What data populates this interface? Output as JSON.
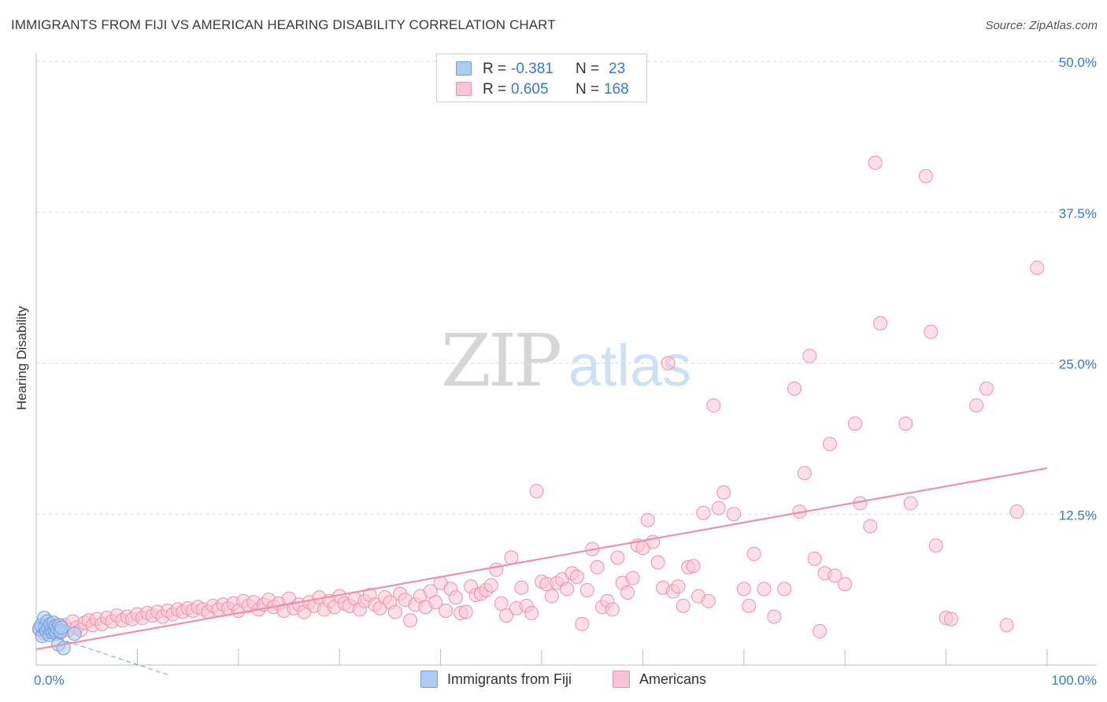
{
  "title": "IMMIGRANTS FROM FIJI VS AMERICAN HEARING DISABILITY CORRELATION CHART",
  "source": "Source: ZipAtlas.com",
  "watermark": {
    "zip": "ZIP",
    "atlas": "atlas"
  },
  "stats": [
    {
      "r_label": "R =",
      "r_value": "-0.381",
      "n_label": "N =",
      "n_value": "23",
      "fill": "#aecbf0",
      "stroke": "#6f9fe0"
    },
    {
      "r_label": "R =",
      "r_value": "0.605",
      "n_label": "N =",
      "n_value": "168",
      "fill": "#f9c4d3",
      "stroke": "#ee8fac"
    }
  ],
  "legend": [
    {
      "label": "Immigrants from Fiji",
      "fill": "#aecbf0",
      "stroke": "#6f9fe0"
    },
    {
      "label": "Americans",
      "fill": "#f9c4d3",
      "stroke": "#ee8fac"
    }
  ],
  "chart_data": {
    "type": "scatter",
    "title": "IMMIGRANTS FROM FIJI VS AMERICAN HEARING DISABILITY CORRELATION CHART",
    "xlabel": "",
    "ylabel": "Hearing Disability",
    "xlim": [
      0,
      100
    ],
    "ylim": [
      0,
      50
    ],
    "x_tick_labels": [
      {
        "x": 0,
        "label": "0.0%"
      },
      {
        "x": 100,
        "label": "100.0%"
      }
    ],
    "y_tick_labels": [
      {
        "y": 12.5,
        "label": "12.5%"
      },
      {
        "y": 25,
        "label": "25.0%"
      },
      {
        "y": 37.5,
        "label": "37.5%"
      },
      {
        "y": 50,
        "label": "50.0%"
      }
    ],
    "grid": "horizontal dashed",
    "series": [
      {
        "name": "Immigrants from Fiji",
        "color": "#6f9fe0",
        "fill": "#aecbf0",
        "trend": {
          "x": [
            0,
            13
          ],
          "y": [
            2.8,
            -0.8
          ],
          "style": "dashed"
        },
        "points": [
          [
            0.3,
            3.0
          ],
          [
            0.5,
            3.3
          ],
          [
            0.6,
            2.4
          ],
          [
            0.8,
            3.9
          ],
          [
            0.9,
            3.2
          ],
          [
            1.0,
            2.8
          ],
          [
            1.1,
            3.6
          ],
          [
            1.2,
            3.1
          ],
          [
            1.3,
            2.5
          ],
          [
            1.4,
            3.4
          ],
          [
            1.5,
            3.0
          ],
          [
            1.6,
            2.7
          ],
          [
            1.7,
            3.5
          ],
          [
            1.8,
            2.9
          ],
          [
            1.9,
            3.2
          ],
          [
            2.0,
            2.6
          ],
          [
            2.1,
            3.0
          ],
          [
            2.2,
            1.7
          ],
          [
            2.3,
            3.3
          ],
          [
            2.4,
            2.8
          ],
          [
            2.5,
            3.1
          ],
          [
            2.7,
            1.4
          ],
          [
            3.8,
            2.6
          ]
        ]
      },
      {
        "name": "Americans",
        "color": "#ee8fac",
        "fill": "#f9c4d3",
        "trend": {
          "x": [
            0,
            100
          ],
          "y": [
            1.3,
            16.3
          ],
          "style": "solid"
        },
        "points": [
          [
            0.4,
            2.9
          ],
          [
            0.8,
            2.6
          ],
          [
            1.2,
            3.2
          ],
          [
            1.6,
            2.8
          ],
          [
            2.0,
            3.0
          ],
          [
            2.4,
            2.7
          ],
          [
            2.8,
            3.3
          ],
          [
            3.2,
            2.9
          ],
          [
            3.6,
            3.6
          ],
          [
            4.0,
            3.1
          ],
          [
            4.4,
            2.9
          ],
          [
            4.8,
            3.5
          ],
          [
            5.2,
            3.7
          ],
          [
            5.6,
            3.3
          ],
          [
            6.0,
            3.8
          ],
          [
            6.5,
            3.4
          ],
          [
            7.0,
            3.9
          ],
          [
            7.5,
            3.6
          ],
          [
            8.0,
            4.1
          ],
          [
            8.5,
            3.7
          ],
          [
            9.0,
            4.0
          ],
          [
            9.5,
            3.8
          ],
          [
            10.0,
            4.2
          ],
          [
            10.5,
            3.9
          ],
          [
            11.0,
            4.3
          ],
          [
            11.5,
            4.1
          ],
          [
            12.0,
            4.4
          ],
          [
            12.5,
            4.0
          ],
          [
            13.0,
            4.5
          ],
          [
            13.5,
            4.2
          ],
          [
            14.0,
            4.6
          ],
          [
            14.5,
            4.4
          ],
          [
            15.0,
            4.7
          ],
          [
            15.5,
            4.5
          ],
          [
            16.0,
            4.8
          ],
          [
            16.5,
            4.6
          ],
          [
            17.0,
            4.4
          ],
          [
            17.5,
            4.9
          ],
          [
            18.0,
            4.6
          ],
          [
            18.5,
            5.0
          ],
          [
            19.0,
            4.7
          ],
          [
            19.5,
            5.1
          ],
          [
            20.0,
            4.5
          ],
          [
            20.5,
            5.3
          ],
          [
            21.0,
            4.9
          ],
          [
            21.5,
            5.2
          ],
          [
            22.0,
            4.6
          ],
          [
            22.5,
            5.0
          ],
          [
            23.0,
            5.4
          ],
          [
            23.5,
            4.8
          ],
          [
            24.0,
            5.1
          ],
          [
            24.5,
            4.5
          ],
          [
            25.0,
            5.5
          ],
          [
            25.5,
            4.7
          ],
          [
            26.0,
            5.0
          ],
          [
            26.5,
            4.4
          ],
          [
            27.0,
            5.2
          ],
          [
            27.5,
            4.9
          ],
          [
            28.0,
            5.6
          ],
          [
            28.5,
            4.6
          ],
          [
            29.0,
            5.3
          ],
          [
            29.5,
            4.8
          ],
          [
            30.0,
            5.7
          ],
          [
            30.5,
            5.1
          ],
          [
            31.0,
            4.9
          ],
          [
            31.5,
            5.5
          ],
          [
            32.0,
            4.6
          ],
          [
            32.5,
            5.3
          ],
          [
            33.0,
            5.8
          ],
          [
            33.5,
            5.0
          ],
          [
            34.0,
            4.7
          ],
          [
            34.5,
            5.6
          ],
          [
            35.0,
            5.2
          ],
          [
            35.5,
            4.4
          ],
          [
            36.0,
            5.9
          ],
          [
            36.5,
            5.4
          ],
          [
            37.0,
            3.7
          ],
          [
            37.5,
            5.0
          ],
          [
            38.0,
            5.7
          ],
          [
            38.5,
            4.8
          ],
          [
            39.0,
            6.1
          ],
          [
            39.5,
            5.2
          ],
          [
            40.0,
            6.8
          ],
          [
            40.5,
            4.5
          ],
          [
            41.0,
            6.3
          ],
          [
            41.5,
            5.6
          ],
          [
            42.0,
            4.3
          ],
          [
            42.5,
            4.4
          ],
          [
            43.0,
            6.5
          ],
          [
            43.5,
            5.8
          ],
          [
            44.0,
            5.9
          ],
          [
            44.5,
            6.2
          ],
          [
            45.0,
            6.6
          ],
          [
            45.5,
            7.9
          ],
          [
            46.0,
            5.1
          ],
          [
            46.5,
            4.1
          ],
          [
            47.0,
            8.9
          ],
          [
            47.5,
            4.7
          ],
          [
            48.0,
            6.4
          ],
          [
            48.5,
            4.9
          ],
          [
            49.0,
            4.3
          ],
          [
            49.5,
            14.4
          ],
          [
            50.0,
            6.9
          ],
          [
            50.5,
            6.7
          ],
          [
            51.0,
            5.7
          ],
          [
            51.5,
            6.8
          ],
          [
            52.0,
            7.1
          ],
          [
            52.5,
            6.3
          ],
          [
            53.0,
            7.6
          ],
          [
            53.5,
            7.3
          ],
          [
            54.0,
            3.4
          ],
          [
            54.5,
            6.2
          ],
          [
            55.0,
            9.6
          ],
          [
            55.5,
            8.1
          ],
          [
            56.0,
            4.8
          ],
          [
            56.5,
            5.3
          ],
          [
            57.0,
            4.6
          ],
          [
            57.5,
            8.9
          ],
          [
            58.0,
            6.8
          ],
          [
            58.5,
            6.0
          ],
          [
            59.0,
            7.2
          ],
          [
            59.5,
            9.9
          ],
          [
            60.0,
            9.7
          ],
          [
            60.5,
            12.0
          ],
          [
            61.0,
            10.2
          ],
          [
            61.5,
            8.5
          ],
          [
            62.0,
            6.4
          ],
          [
            62.5,
            25.0
          ],
          [
            63.0,
            6.1
          ],
          [
            63.5,
            6.5
          ],
          [
            64.0,
            4.9
          ],
          [
            64.5,
            8.1
          ],
          [
            65.0,
            8.2
          ],
          [
            65.5,
            5.7
          ],
          [
            66.0,
            12.6
          ],
          [
            66.5,
            5.3
          ],
          [
            67.0,
            21.5
          ],
          [
            67.5,
            13.0
          ],
          [
            68.0,
            14.3
          ],
          [
            69.0,
            12.5
          ],
          [
            70.0,
            6.3
          ],
          [
            70.5,
            4.9
          ],
          [
            71.0,
            9.2
          ],
          [
            72.0,
            6.3
          ],
          [
            73.0,
            4.0
          ],
          [
            74.0,
            6.3
          ],
          [
            75.0,
            22.9
          ],
          [
            75.5,
            12.7
          ],
          [
            76.0,
            15.9
          ],
          [
            76.5,
            25.6
          ],
          [
            77.0,
            8.8
          ],
          [
            77.5,
            2.8
          ],
          [
            78.0,
            7.6
          ],
          [
            78.5,
            18.3
          ],
          [
            79.0,
            7.4
          ],
          [
            80.0,
            6.7
          ],
          [
            81.0,
            20.0
          ],
          [
            81.5,
            13.4
          ],
          [
            82.5,
            11.5
          ],
          [
            83.0,
            41.6
          ],
          [
            83.5,
            28.3
          ],
          [
            86.0,
            20.0
          ],
          [
            86.5,
            13.4
          ],
          [
            88.0,
            40.5
          ],
          [
            88.5,
            27.6
          ],
          [
            89.0,
            9.9
          ],
          [
            90.0,
            3.9
          ],
          [
            90.5,
            3.8
          ],
          [
            93.0,
            21.5
          ],
          [
            94.0,
            22.9
          ],
          [
            96.0,
            3.3
          ],
          [
            97.0,
            12.7
          ],
          [
            99.0,
            32.9
          ]
        ]
      }
    ]
  }
}
